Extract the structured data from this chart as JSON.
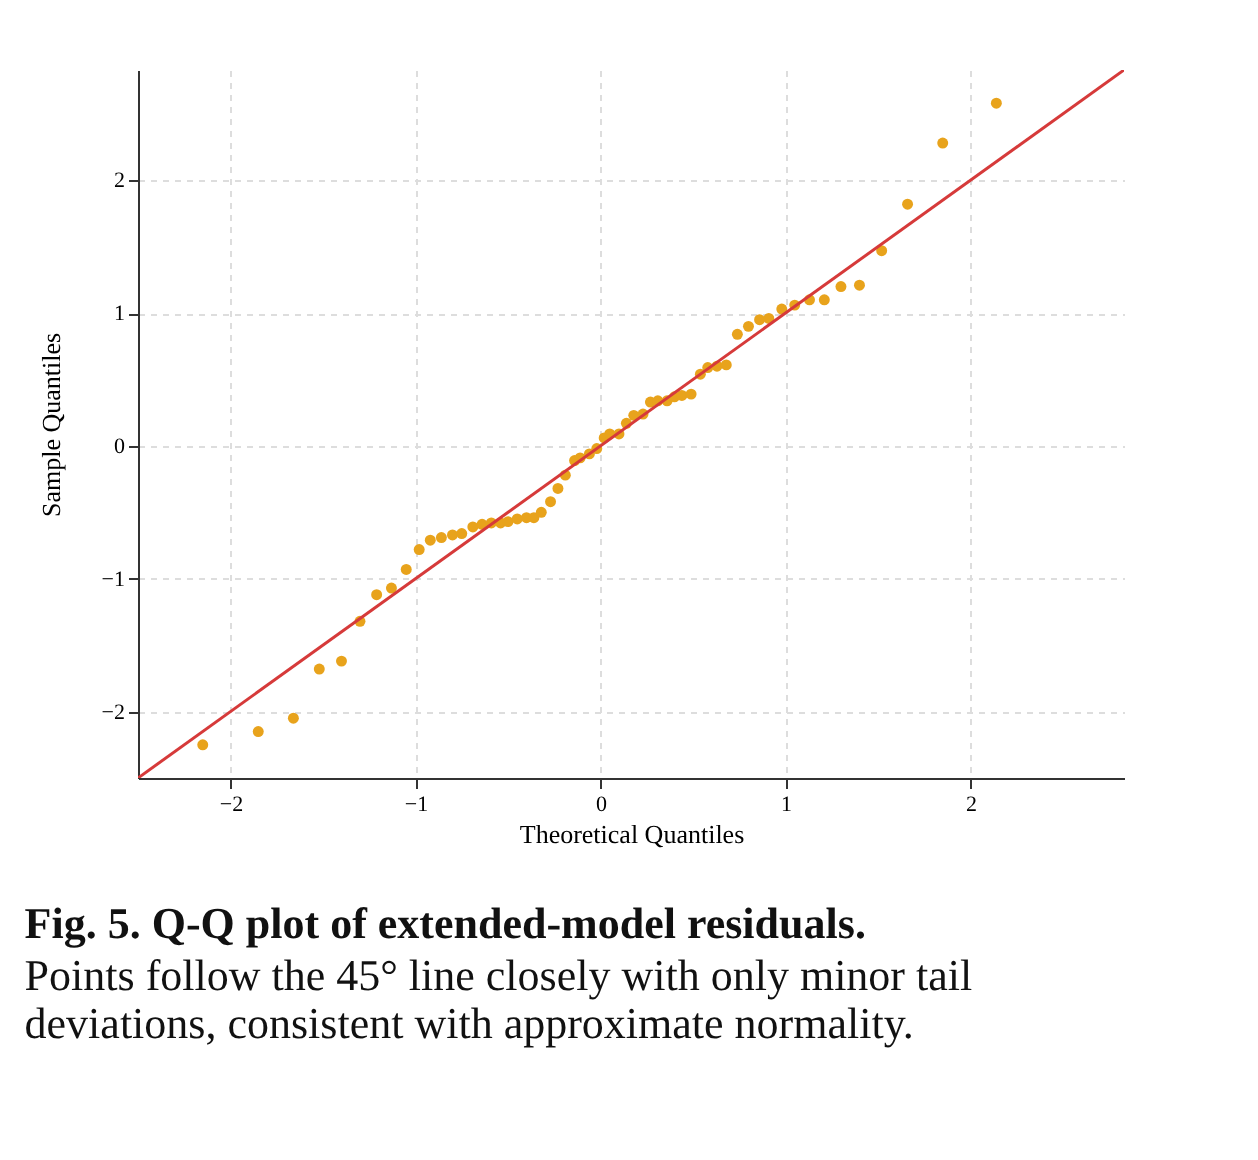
{
  "chart_data": {
    "type": "scatter",
    "title": "Fig. 5.  Q-Q plot of extended-model residuals.",
    "subtitle": "Points follow the 45° line closely with only minor tail\ndeviations, consistent with approximate normality.",
    "xlabel": "Theoretical Quantiles",
    "ylabel": "Sample Quantiles",
    "xlim": [
      -2.5,
      2.83
    ],
    "ylim": [
      -2.5,
      2.83
    ],
    "xticks": [
      {
        "value": -2,
        "label": "−2"
      },
      {
        "value": -1,
        "label": "−1"
      },
      0,
      1,
      2
    ],
    "yticks": [
      {
        "value": -2,
        "label": "−2"
      },
      {
        "value": -1,
        "label": "−1"
      },
      0,
      1,
      2
    ],
    "grid": true,
    "marker": "circle",
    "series": [
      {
        "color": "#e8a31c",
        "x": [
          -2.15,
          -1.85,
          -1.66,
          -1.52,
          -1.4,
          -1.3,
          -1.21,
          -1.13,
          -1.05,
          -0.98,
          -0.92,
          -0.86,
          -0.8,
          -0.75,
          -0.69,
          -0.64,
          -0.59,
          -0.54,
          -0.5,
          -0.45,
          -0.4,
          -0.36,
          -0.32,
          -0.27,
          -0.23,
          -0.19,
          -0.14,
          -0.11,
          -0.06,
          -0.02,
          0.02,
          0.05,
          0.1,
          0.14,
          0.18,
          0.23,
          0.27,
          0.31,
          0.36,
          0.4,
          0.44,
          0.49,
          0.54,
          0.58,
          0.63,
          0.68,
          0.74,
          0.8,
          0.86,
          0.91,
          0.98,
          1.05,
          1.13,
          1.21,
          1.3,
          1.4,
          1.52,
          1.66,
          1.85,
          2.14
        ],
        "values": [
          -2.25,
          -2.15,
          -2.05,
          -1.68,
          -1.62,
          -1.32,
          -1.12,
          -1.07,
          -0.93,
          -0.78,
          -0.71,
          -0.69,
          -0.67,
          -0.66,
          -0.61,
          -0.59,
          -0.58,
          -0.58,
          -0.57,
          -0.55,
          -0.54,
          -0.54,
          -0.5,
          -0.42,
          -0.32,
          -0.22,
          -0.11,
          -0.09,
          -0.06,
          -0.02,
          0.06,
          0.09,
          0.09,
          0.17,
          0.23,
          0.24,
          0.33,
          0.34,
          0.34,
          0.37,
          0.38,
          0.39,
          0.54,
          0.59,
          0.6,
          0.61,
          0.84,
          0.9,
          0.95,
          0.96,
          1.03,
          1.06,
          1.1,
          1.1,
          1.2,
          1.21,
          1.47,
          1.82,
          2.28,
          2.58
        ]
      },
      {
        "type": "line",
        "marker": "none",
        "line_style": "solid",
        "color": "#d63a3a",
        "x": [
          -2.5,
          2.83
        ],
        "values": [
          -2.5,
          2.83
        ]
      }
    ]
  }
}
